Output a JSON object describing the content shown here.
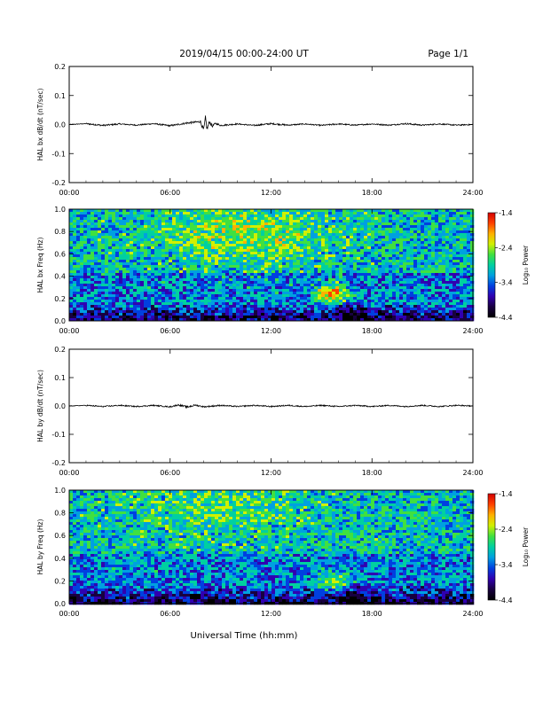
{
  "header": {
    "date_range": "2019/04/15  00:00-24:00 UT",
    "page": "Page 1/1"
  },
  "x_axis_title": "Universal Time (hh:mm)",
  "colorbar": {
    "label": "Log₁₀ Power",
    "ticks": [
      "-1.4",
      "-2.4",
      "-3.4",
      "-4.4"
    ],
    "colors": [
      "#d40000",
      "#ff4000",
      "#ffb000",
      "#d0f000",
      "#40e040",
      "#00d0a0",
      "#00a0e0",
      "#0040e0",
      "#3000b0",
      "#180040",
      "#000000"
    ]
  },
  "chart_data": [
    {
      "type": "line",
      "ylabel": "HAL bx dB/dt (nT/sec)",
      "x_ticks": [
        "00:00",
        "06:00",
        "12:00",
        "18:00",
        "24:00"
      ],
      "y_ticks": [
        "0.2",
        "0.1",
        "0.0",
        "-0.1",
        "-0.2"
      ],
      "xlim": [
        0,
        24
      ],
      "ylim": [
        -0.2,
        0.2
      ],
      "series": [
        {
          "x": [
            0,
            1,
            2,
            3,
            4,
            5,
            6,
            7,
            7.8,
            8.0,
            8.1,
            8.2,
            8.35,
            8.5,
            8.7,
            9,
            10,
            11,
            12,
            13,
            14,
            15,
            16,
            17,
            18,
            19,
            20,
            21,
            22,
            23,
            24
          ],
          "values": [
            0.0,
            0.003,
            -0.003,
            0.002,
            -0.002,
            0.003,
            -0.004,
            0.005,
            0.01,
            -0.02,
            0.02,
            -0.015,
            0.01,
            -0.006,
            0.004,
            -0.003,
            0.002,
            -0.003,
            0.003,
            -0.002,
            0.002,
            -0.003,
            0.002,
            -0.002,
            0.002,
            -0.002,
            0.003,
            -0.002,
            0.002,
            -0.002,
            0.0
          ]
        }
      ]
    },
    {
      "type": "heatmap",
      "ylabel": "HAL bx Freq (Hz)",
      "x_ticks": [
        "00:00",
        "06:00",
        "12:00",
        "18:00",
        "24:00"
      ],
      "y_ticks": [
        "1.0",
        "0.8",
        "0.6",
        "0.4",
        "0.2",
        "0.0"
      ],
      "xlim": [
        0,
        24
      ],
      "ylim": [
        0,
        1.0
      ],
      "zlim": [
        -4.4,
        -1.4
      ],
      "zlabel": "Log₁₀ Power",
      "features": [
        {
          "x": 10.5,
          "y": 0.8,
          "value": -2.5
        },
        {
          "x": 15.5,
          "y": 0.25,
          "value": -1.8
        },
        {
          "x": 16.5,
          "y": 0.05,
          "value": -4.3
        }
      ]
    },
    {
      "type": "line",
      "ylabel": "HAL by dB/dt (nT/sec)",
      "x_ticks": [
        "00:00",
        "06:00",
        "12:00",
        "18:00",
        "24:00"
      ],
      "y_ticks": [
        "0.2",
        "0.1",
        "0.0",
        "-0.1",
        "-0.2"
      ],
      "xlim": [
        0,
        24
      ],
      "ylim": [
        -0.2,
        0.2
      ],
      "series": [
        {
          "x": [
            0,
            1,
            2,
            3,
            4,
            5,
            6,
            6.5,
            7,
            7.5,
            8,
            9,
            10,
            11,
            12,
            13,
            14,
            15,
            16,
            17,
            18,
            19,
            20,
            21,
            22,
            23,
            24
          ],
          "values": [
            0.0,
            0.002,
            -0.002,
            0.002,
            -0.002,
            0.002,
            -0.003,
            0.004,
            -0.004,
            0.003,
            -0.003,
            0.002,
            -0.002,
            0.002,
            -0.002,
            0.002,
            -0.002,
            0.002,
            -0.002,
            0.002,
            -0.002,
            0.002,
            -0.002,
            0.002,
            -0.002,
            0.002,
            0.0
          ]
        }
      ]
    },
    {
      "type": "heatmap",
      "ylabel": "HAL by Freq (Hz)",
      "x_ticks": [
        "00:00",
        "06:00",
        "12:00",
        "18:00",
        "24:00"
      ],
      "y_ticks": [
        "1.0",
        "0.8",
        "0.6",
        "0.4",
        "0.2",
        "0.0"
      ],
      "xlim": [
        0,
        24
      ],
      "ylim": [
        0,
        1.0
      ],
      "zlim": [
        -4.4,
        -1.4
      ],
      "zlabel": "Log₁₀ Power",
      "features": [
        {
          "x": 9.0,
          "y": 0.85,
          "value": -2.7
        },
        {
          "x": 15.8,
          "y": 0.2,
          "value": -2.3
        },
        {
          "x": 16.5,
          "y": 0.05,
          "value": -4.3
        }
      ]
    }
  ]
}
